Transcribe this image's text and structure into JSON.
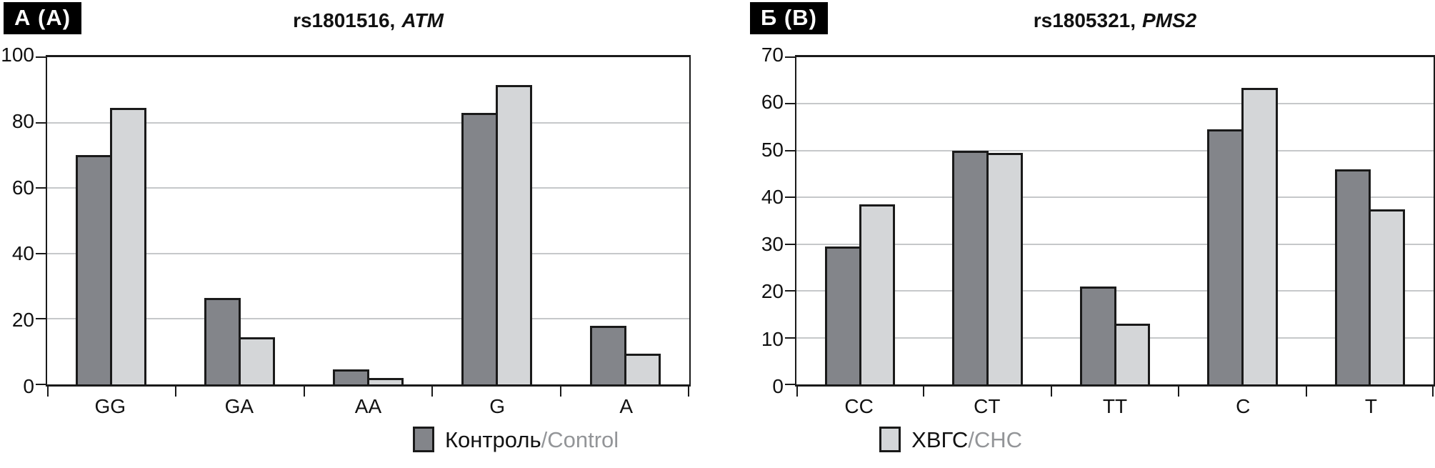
{
  "colors": {
    "control_bar": "#83858A",
    "chc_bar": "#D4D6D8",
    "bar_border": "#1A1A1A",
    "gridline": "#C6C8CA",
    "secondary_text": "#939598",
    "badge_bg": "#000000",
    "badge_text": "#FFFFFF"
  },
  "legend": {
    "items": [
      {
        "name": "control",
        "label_primary": "Контроль",
        "label_secondary": "/Control"
      },
      {
        "name": "chc",
        "label_primary": "ХВГС",
        "label_secondary": "/CHC"
      }
    ]
  },
  "chart_data": [
    {
      "type": "bar",
      "panel_label": "А (A)",
      "title_prefix": "rs1801516,",
      "title_gene": "ATM",
      "categories": [
        "GG",
        "GA",
        "AA",
        "G",
        "A"
      ],
      "series": [
        {
          "name": "Контроль/Control",
          "values": [
            70,
            26.5,
            4.5,
            83,
            18
          ]
        },
        {
          "name": "ХВГС/CHC",
          "values": [
            84.5,
            14.5,
            2,
            91.5,
            9.5
          ]
        }
      ],
      "xlabel": "",
      "ylabel": "",
      "ylim": [
        0,
        100
      ],
      "yticks": [
        0,
        20,
        40,
        60,
        80,
        100
      ],
      "grid": true,
      "legend_position": "bottom-center-shared"
    },
    {
      "type": "bar",
      "panel_label": "Б (B)",
      "title_prefix": "rs1805321,",
      "title_gene": "PMS2",
      "categories": [
        "CC",
        "CT",
        "TT",
        "C",
        "T"
      ],
      "series": [
        {
          "name": "Контроль/Control",
          "values": [
            29.5,
            50,
            21,
            54.5,
            46
          ]
        },
        {
          "name": "ХВГС/CHC",
          "values": [
            38.5,
            49.5,
            13,
            63.5,
            37.5
          ]
        }
      ],
      "xlabel": "",
      "ylabel": "",
      "ylim": [
        0,
        70
      ],
      "yticks": [
        0,
        10,
        20,
        30,
        40,
        50,
        60,
        70
      ],
      "grid": true,
      "legend_position": "bottom-center-shared"
    }
  ]
}
